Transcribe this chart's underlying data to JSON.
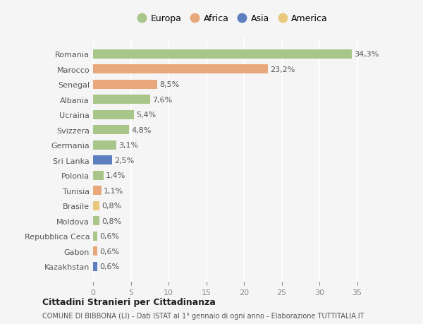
{
  "countries": [
    "Romania",
    "Marocco",
    "Senegal",
    "Albania",
    "Ucraina",
    "Svizzera",
    "Germania",
    "Sri Lanka",
    "Polonia",
    "Tunisia",
    "Brasile",
    "Moldova",
    "Repubblica Ceca",
    "Gabon",
    "Kazakhstan"
  ],
  "values": [
    34.3,
    23.2,
    8.5,
    7.6,
    5.4,
    4.8,
    3.1,
    2.5,
    1.4,
    1.1,
    0.8,
    0.8,
    0.6,
    0.6,
    0.6
  ],
  "labels": [
    "34,3%",
    "23,2%",
    "8,5%",
    "7,6%",
    "5,4%",
    "4,8%",
    "3,1%",
    "2,5%",
    "1,4%",
    "1,1%",
    "0,8%",
    "0,8%",
    "0,6%",
    "0,6%",
    "0,6%"
  ],
  "continents": [
    "Europa",
    "Africa",
    "Africa",
    "Europa",
    "Europa",
    "Europa",
    "Europa",
    "Asia",
    "Europa",
    "Africa",
    "America",
    "Europa",
    "Europa",
    "Africa",
    "Asia"
  ],
  "continent_colors": {
    "Europa": "#a8c58a",
    "Africa": "#e8a87c",
    "Asia": "#5b7fc1",
    "America": "#e8c87c"
  },
  "legend_order": [
    "Europa",
    "Africa",
    "Asia",
    "America"
  ],
  "bg_color": "#f5f5f5",
  "title": "Cittadini Stranieri per Cittadinanza",
  "subtitle": "COMUNE DI BIBBONA (LI) - Dati ISTAT al 1° gennaio di ogni anno - Elaborazione TUTTITALIA.IT",
  "xlim": [
    0,
    37
  ],
  "xticks": [
    0,
    5,
    10,
    15,
    20,
    25,
    30,
    35
  ]
}
